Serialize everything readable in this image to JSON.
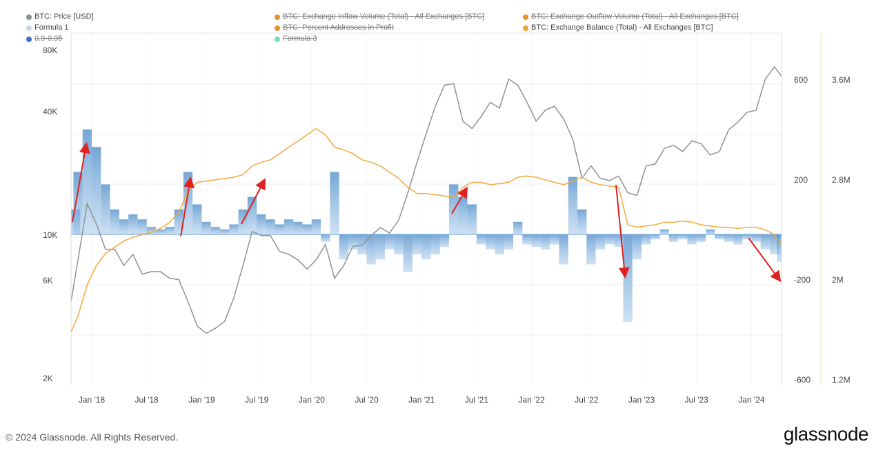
{
  "legend": [
    {
      "label": "BTC: Price [USD]",
      "color": "#8c9394",
      "active": true
    },
    {
      "label": "BTC: Exchange Inflow Volume (Total) - All Exchanges [BTC]",
      "color": "#e8912b",
      "active": false
    },
    {
      "label": "BTC: Exchange Outflow Volume (Total) - All Exchanges [BTC]",
      "color": "#e8912b",
      "active": false
    },
    {
      "label": "Formula 1",
      "color": "#c9d6e6",
      "active": true
    },
    {
      "label": "BTC: Percent Addresses in Profit",
      "color": "#e8912b",
      "active": false
    },
    {
      "label": "BTC: Exchange Balance (Total) - All Exchanges [BTC]",
      "color": "#e8a838",
      "active": true
    },
    {
      "label": "0.9-0.95",
      "color": "#3a6fd0",
      "active": false
    },
    {
      "label": "Formula 3",
      "color": "#6fe0c0",
      "active": false
    }
  ],
  "footer": {
    "copyright": "© 2024 Glassnode. All Rights Reserved.",
    "logo": "glassnode"
  },
  "chart_data": {
    "type": "line",
    "title": "",
    "grid": true,
    "legend_placement": "top",
    "x_ticks": [
      "Jan '18",
      "Jul '18",
      "Jan '19",
      "Jul '19",
      "Jan '20",
      "Jul '20",
      "Jan '21",
      "Jul '21",
      "Jan '22",
      "Jul '22",
      "Jan '23",
      "Jul '23",
      "Jan '24"
    ],
    "x_range": [
      "2017-10",
      "2024-04"
    ],
    "months": [
      "2017-10",
      "2017-11",
      "2017-12",
      "2018-01",
      "2018-02",
      "2018-03",
      "2018-04",
      "2018-05",
      "2018-06",
      "2018-07",
      "2018-08",
      "2018-09",
      "2018-10",
      "2018-11",
      "2018-12",
      "2019-01",
      "2019-02",
      "2019-03",
      "2019-04",
      "2019-05",
      "2019-06",
      "2019-07",
      "2019-08",
      "2019-09",
      "2019-10",
      "2019-11",
      "2019-12",
      "2020-01",
      "2020-02",
      "2020-03",
      "2020-04",
      "2020-05",
      "2020-06",
      "2020-07",
      "2020-08",
      "2020-09",
      "2020-10",
      "2020-11",
      "2020-12",
      "2021-01",
      "2021-02",
      "2021-03",
      "2021-04",
      "2021-05",
      "2021-06",
      "2021-07",
      "2021-08",
      "2021-09",
      "2021-10",
      "2021-11",
      "2021-12",
      "2022-01",
      "2022-02",
      "2022-03",
      "2022-04",
      "2022-05",
      "2022-06",
      "2022-07",
      "2022-08",
      "2022-09",
      "2022-10",
      "2022-11",
      "2022-12",
      "2023-01",
      "2023-02",
      "2023-03",
      "2023-04",
      "2023-05",
      "2023-06",
      "2023-07",
      "2023-08",
      "2023-09",
      "2023-10",
      "2023-11",
      "2023-12",
      "2024-01",
      "2024-02",
      "2024-03",
      "2024-04"
    ],
    "axes": {
      "price": {
        "scale": "log",
        "ticks": [
          "2K",
          "6K",
          "10K",
          "40K",
          "80K"
        ],
        "tick_values": [
          2000,
          6000,
          10000,
          40000,
          80000
        ],
        "side": "left"
      },
      "formula": {
        "scale": "linear",
        "ticks": [
          "600",
          "200",
          "-200",
          "-600"
        ],
        "range": [
          -600,
          600
        ],
        "side": "right"
      },
      "balance": {
        "scale": "linear",
        "ticks": [
          "3.6M",
          "2.8M",
          "2M",
          "1.2M"
        ],
        "range": [
          1200000,
          3600000
        ],
        "side": "right"
      }
    },
    "series": [
      {
        "name": "BTC: Price [USD]",
        "axis": "price",
        "type": "line",
        "color": "#8c9394",
        "values": [
          5000,
          8000,
          15000,
          12000,
          9000,
          9000,
          7500,
          8500,
          6800,
          7000,
          7000,
          6500,
          6400,
          5000,
          3800,
          3500,
          3700,
          4000,
          5200,
          7500,
          11000,
          10500,
          10500,
          8800,
          8500,
          8000,
          7200,
          8000,
          9500,
          6500,
          7500,
          9300,
          9400,
          10500,
          11500,
          10800,
          12500,
          17000,
          24000,
          33000,
          45000,
          57000,
          58000,
          38000,
          35000,
          40000,
          47000,
          44000,
          61000,
          57000,
          47000,
          38000,
          43000,
          45000,
          39000,
          31000,
          20000,
          23000,
          20000,
          19500,
          20500,
          17000,
          16500,
          23000,
          23500,
          28000,
          29000,
          27000,
          30500,
          29500,
          26000,
          27000,
          34500,
          37500,
          42000,
          43000,
          61000,
          70000,
          63000
        ]
      },
      {
        "name": "Formula 1",
        "axis": "formula",
        "type": "bar",
        "color": "#5a9bd5",
        "values": [
          100,
          250,
          420,
          350,
          200,
          100,
          60,
          80,
          60,
          30,
          20,
          30,
          100,
          250,
          120,
          50,
          30,
          20,
          40,
          100,
          150,
          80,
          60,
          40,
          60,
          50,
          40,
          60,
          -30,
          250,
          -100,
          -60,
          -80,
          -120,
          -100,
          -60,
          -80,
          -150,
          -80,
          -100,
          -80,
          -50,
          200,
          150,
          120,
          -40,
          -60,
          -80,
          -60,
          50,
          -40,
          -50,
          -60,
          -40,
          -120,
          230,
          100,
          -120,
          -60,
          -40,
          -50,
          -350,
          -100,
          -40,
          -20,
          20,
          -30,
          -20,
          -40,
          -30,
          20,
          -20,
          -30,
          -40,
          -20,
          -30,
          -60,
          -80,
          -110
        ]
      },
      {
        "name": "BTC: Exchange Balance (Total) - All Exchanges [BTC]",
        "axis": "balance",
        "type": "line",
        "color": "#f2a93b",
        "values": [
          1620000,
          1750000,
          2000000,
          2150000,
          2250000,
          2300000,
          2350000,
          2380000,
          2400000,
          2420000,
          2450000,
          2500000,
          2580000,
          2750000,
          2820000,
          2830000,
          2840000,
          2850000,
          2860000,
          2880000,
          2950000,
          2980000,
          3000000,
          3050000,
          3100000,
          3150000,
          3200000,
          3250000,
          3200000,
          3100000,
          3080000,
          3050000,
          3000000,
          2980000,
          2950000,
          2900000,
          2850000,
          2780000,
          2730000,
          2730000,
          2720000,
          2710000,
          2700000,
          2780000,
          2820000,
          2820000,
          2800000,
          2810000,
          2820000,
          2860000,
          2870000,
          2860000,
          2840000,
          2820000,
          2800000,
          2830000,
          2860000,
          2820000,
          2800000,
          2790000,
          2780000,
          2480000,
          2460000,
          2470000,
          2480000,
          2500000,
          2500000,
          2510000,
          2500000,
          2480000,
          2470000,
          2460000,
          2460000,
          2450000,
          2460000,
          2460000,
          2440000,
          2400000,
          2320000
        ]
      }
    ],
    "annotations": {
      "type": "arrows",
      "color": "#e02020",
      "count": 6
    }
  }
}
